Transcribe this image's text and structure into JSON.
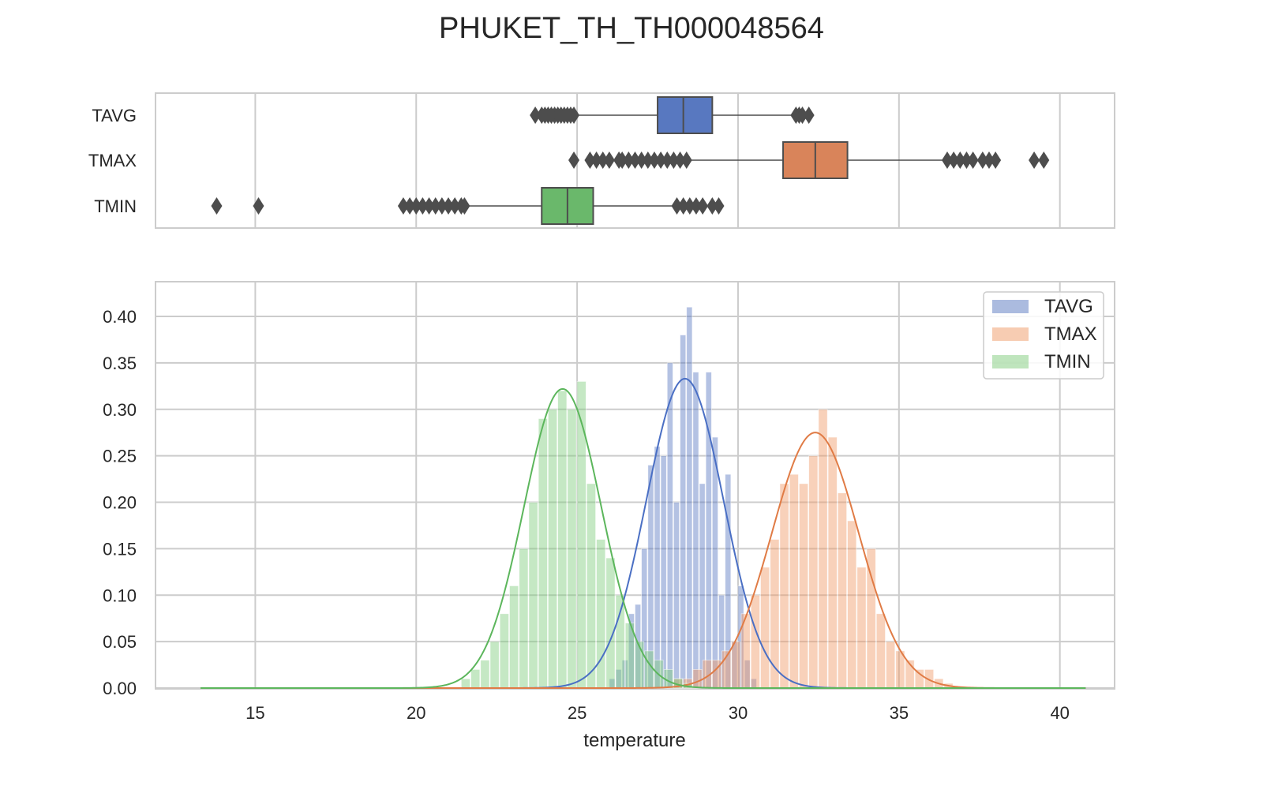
{
  "chart_data": {
    "title": "PHUKET_TH_TH000048564",
    "xlabel": "temperature",
    "ylabel": "",
    "xlim": [
      11.9,
      41.7
    ],
    "xticks": [
      "15",
      "20",
      "25",
      "30",
      "35",
      "40"
    ],
    "grid": true,
    "boxplot": {
      "type": "box",
      "categories": [
        "TAVG",
        "TMAX",
        "TMIN"
      ],
      "series": [
        {
          "name": "TAVG",
          "color": "#5878c0",
          "whisker_low": 25.0,
          "q1": 27.5,
          "median": 28.3,
          "q3": 29.2,
          "whisker_high": 31.7,
          "outliers": [
            23.7,
            23.9,
            24.0,
            24.1,
            24.2,
            24.3,
            24.4,
            24.5,
            24.6,
            24.7,
            24.8,
            24.9,
            31.8,
            31.9,
            32.0,
            32.2
          ]
        },
        {
          "name": "TMAX",
          "color": "#d9845a",
          "whisker_low": 28.5,
          "q1": 31.4,
          "median": 32.4,
          "q3": 33.4,
          "whisker_high": 36.4,
          "outliers": [
            24.9,
            25.4,
            25.6,
            25.8,
            26.0,
            26.3,
            26.4,
            26.6,
            26.8,
            27.0,
            27.2,
            27.4,
            27.6,
            27.8,
            28.0,
            28.2,
            28.4,
            36.5,
            36.7,
            36.9,
            37.1,
            37.3,
            37.6,
            37.8,
            38.0,
            39.2,
            39.5
          ]
        },
        {
          "name": "TMIN",
          "color": "#6ab86b",
          "whisker_low": 21.6,
          "q1": 23.9,
          "median": 24.7,
          "q3": 25.5,
          "whisker_high": 28.0,
          "outliers": [
            13.8,
            15.1,
            19.6,
            19.8,
            20.0,
            20.2,
            20.4,
            20.6,
            20.8,
            21.0,
            21.2,
            21.4,
            21.5,
            28.1,
            28.3,
            28.5,
            28.7,
            28.9,
            29.2,
            29.4
          ]
        }
      ]
    },
    "histogram": {
      "type": "bar",
      "yticks": [
        "0.00",
        "0.05",
        "0.10",
        "0.15",
        "0.20",
        "0.25",
        "0.30",
        "0.35",
        "0.40"
      ],
      "ylim": [
        0,
        0.4
      ],
      "legend_position": "top-right",
      "series": [
        {
          "name": "TAVG",
          "color": "#5878c0",
          "kde_color": "#4a6fc4",
          "kde_mean": 28.35,
          "kde_sd": 1.2,
          "kde_peak": 0.333,
          "bins": [
            [
              26.0,
              0.01
            ],
            [
              26.2,
              0.02
            ],
            [
              26.4,
              0.03
            ],
            [
              26.6,
              0.08
            ],
            [
              26.8,
              0.09
            ],
            [
              27.0,
              0.15
            ],
            [
              27.2,
              0.24
            ],
            [
              27.4,
              0.26
            ],
            [
              27.6,
              0.25
            ],
            [
              27.8,
              0.35
            ],
            [
              28.0,
              0.2
            ],
            [
              28.2,
              0.38
            ],
            [
              28.4,
              0.41
            ],
            [
              28.6,
              0.34
            ],
            [
              28.8,
              0.22
            ],
            [
              29.0,
              0.34
            ],
            [
              29.2,
              0.27
            ],
            [
              29.4,
              0.1
            ],
            [
              29.6,
              0.23
            ],
            [
              29.8,
              0.05
            ],
            [
              30.0,
              0.11
            ],
            [
              30.2,
              0.03
            ],
            [
              30.4,
              0.01
            ]
          ]
        },
        {
          "name": "TMAX",
          "color": "#f09a66",
          "kde_color": "#e07b45",
          "kde_mean": 32.4,
          "kde_sd": 1.35,
          "kde_peak": 0.275,
          "bins": [
            [
              28.0,
              0.01
            ],
            [
              28.3,
              0.01
            ],
            [
              28.6,
              0.02
            ],
            [
              28.9,
              0.03
            ],
            [
              29.2,
              0.03
            ],
            [
              29.5,
              0.04
            ],
            [
              29.8,
              0.05
            ],
            [
              30.1,
              0.08
            ],
            [
              30.4,
              0.1
            ],
            [
              30.7,
              0.13
            ],
            [
              31.0,
              0.16
            ],
            [
              31.3,
              0.22
            ],
            [
              31.6,
              0.23
            ],
            [
              31.9,
              0.22
            ],
            [
              32.2,
              0.25
            ],
            [
              32.5,
              0.3
            ],
            [
              32.8,
              0.27
            ],
            [
              33.1,
              0.21
            ],
            [
              33.4,
              0.18
            ],
            [
              33.7,
              0.13
            ],
            [
              34.0,
              0.15
            ],
            [
              34.3,
              0.08
            ],
            [
              34.6,
              0.05
            ],
            [
              34.9,
              0.04
            ],
            [
              35.2,
              0.03
            ],
            [
              35.5,
              0.02
            ],
            [
              35.8,
              0.02
            ],
            [
              36.1,
              0.01
            ],
            [
              36.4,
              0.005
            ]
          ]
        },
        {
          "name": "TMIN",
          "color": "#7fcb7c",
          "kde_color": "#5cb65c",
          "kde_mean": 24.55,
          "kde_sd": 1.2,
          "kde_peak": 0.322,
          "bins": [
            [
              21.4,
              0.01
            ],
            [
              21.7,
              0.02
            ],
            [
              22.0,
              0.03
            ],
            [
              22.3,
              0.05
            ],
            [
              22.6,
              0.08
            ],
            [
              22.9,
              0.11
            ],
            [
              23.2,
              0.15
            ],
            [
              23.5,
              0.2
            ],
            [
              23.8,
              0.29
            ],
            [
              24.1,
              0.3
            ],
            [
              24.4,
              0.32
            ],
            [
              24.7,
              0.3
            ],
            [
              25.0,
              0.33
            ],
            [
              25.3,
              0.22
            ],
            [
              25.6,
              0.16
            ],
            [
              25.9,
              0.14
            ],
            [
              26.2,
              0.1
            ],
            [
              26.5,
              0.07
            ],
            [
              26.8,
              0.05
            ],
            [
              27.1,
              0.04
            ],
            [
              27.4,
              0.03
            ],
            [
              27.7,
              0.02
            ],
            [
              28.0,
              0.01
            ],
            [
              28.3,
              0.005
            ]
          ]
        }
      ]
    }
  }
}
